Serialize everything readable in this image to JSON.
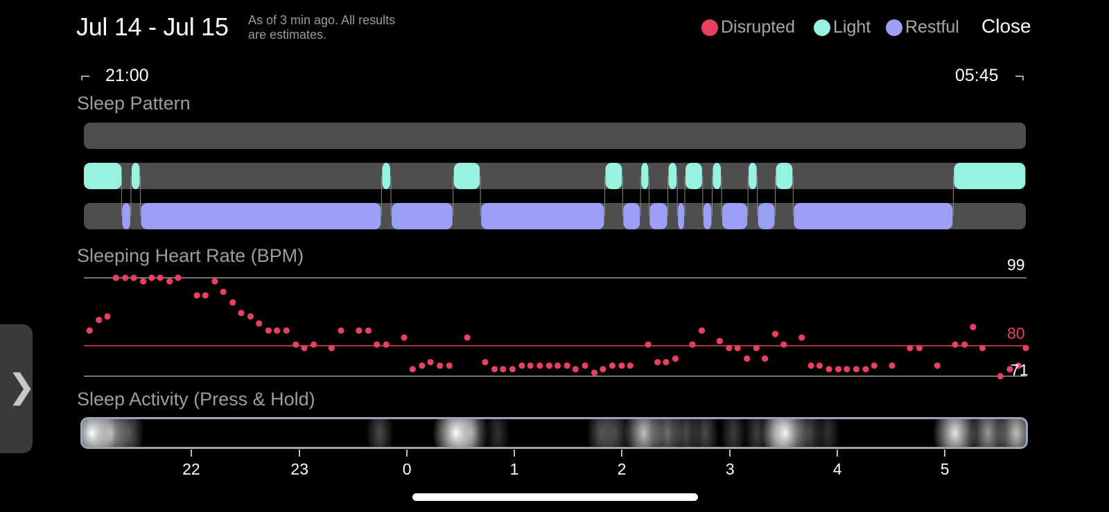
{
  "header": {
    "date_range": "Jul 14 - Jul 15",
    "as_of_line1": "As of 3 min ago. All results",
    "as_of_line2": "are estimates.",
    "legend": [
      {
        "label": "Disrupted",
        "color": "#e8405f"
      },
      {
        "label": "Light",
        "color": "#96f2e1"
      },
      {
        "label": "Restful",
        "color": "#9b9ff5"
      }
    ],
    "close_label": "Close"
  },
  "time_range": {
    "start": "21:00",
    "end": "05:45"
  },
  "sleep_pattern": {
    "title": "Sleep Pattern",
    "light_segments": [
      [
        0.0,
        0.04
      ],
      [
        0.05,
        0.06
      ],
      [
        0.316,
        0.326
      ],
      [
        0.392,
        0.421
      ],
      [
        0.553,
        0.572
      ],
      [
        0.591,
        0.6
      ],
      [
        0.62,
        0.63
      ],
      [
        0.638,
        0.657
      ],
      [
        0.667,
        0.677
      ],
      [
        0.705,
        0.715
      ],
      [
        0.734,
        0.753
      ],
      [
        0.923,
        1.0
      ]
    ],
    "restful_segments": [
      [
        0.04,
        0.05
      ],
      [
        0.06,
        0.316
      ],
      [
        0.326,
        0.392
      ],
      [
        0.421,
        0.553
      ],
      [
        0.572,
        0.591
      ],
      [
        0.6,
        0.62
      ],
      [
        0.63,
        0.638
      ],
      [
        0.657,
        0.667
      ],
      [
        0.677,
        0.705
      ],
      [
        0.715,
        0.734
      ],
      [
        0.753,
        0.923
      ]
    ]
  },
  "heart_rate": {
    "title": "Sleeping Heart Rate (BPM)",
    "max_label": "99",
    "avg_label": "80",
    "min_label": "71",
    "max": 99,
    "avg": 80,
    "min": 71,
    "points": [
      [
        0.006,
        84
      ],
      [
        0.016,
        87
      ],
      [
        0.025,
        88
      ],
      [
        0.034,
        99
      ],
      [
        0.044,
        99
      ],
      [
        0.053,
        99
      ],
      [
        0.063,
        98
      ],
      [
        0.072,
        99
      ],
      [
        0.081,
        99
      ],
      [
        0.091,
        98
      ],
      [
        0.1,
        99
      ],
      [
        0.12,
        94
      ],
      [
        0.129,
        94
      ],
      [
        0.139,
        98
      ],
      [
        0.148,
        95
      ],
      [
        0.158,
        92
      ],
      [
        0.167,
        89
      ],
      [
        0.177,
        88
      ],
      [
        0.186,
        86
      ],
      [
        0.196,
        84
      ],
      [
        0.205,
        84
      ],
      [
        0.215,
        84
      ],
      [
        0.225,
        80
      ],
      [
        0.234,
        79
      ],
      [
        0.244,
        80
      ],
      [
        0.263,
        79
      ],
      [
        0.273,
        84
      ],
      [
        0.292,
        84
      ],
      [
        0.302,
        84
      ],
      [
        0.311,
        80
      ],
      [
        0.321,
        80
      ],
      [
        0.34,
        82
      ],
      [
        0.349,
        73
      ],
      [
        0.359,
        74
      ],
      [
        0.368,
        75
      ],
      [
        0.378,
        74
      ],
      [
        0.388,
        74
      ],
      [
        0.407,
        82
      ],
      [
        0.426,
        75
      ],
      [
        0.436,
        73
      ],
      [
        0.445,
        73
      ],
      [
        0.455,
        73
      ],
      [
        0.465,
        74
      ],
      [
        0.474,
        74
      ],
      [
        0.484,
        74
      ],
      [
        0.494,
        74
      ],
      [
        0.503,
        74
      ],
      [
        0.513,
        74
      ],
      [
        0.522,
        73
      ],
      [
        0.532,
        74
      ],
      [
        0.542,
        72
      ],
      [
        0.551,
        73
      ],
      [
        0.561,
        74
      ],
      [
        0.571,
        74
      ],
      [
        0.58,
        74
      ],
      [
        0.599,
        80
      ],
      [
        0.609,
        75
      ],
      [
        0.618,
        75
      ],
      [
        0.628,
        76
      ],
      [
        0.646,
        80
      ],
      [
        0.656,
        84
      ],
      [
        0.675,
        81
      ],
      [
        0.685,
        79
      ],
      [
        0.694,
        79
      ],
      [
        0.704,
        76
      ],
      [
        0.714,
        79
      ],
      [
        0.723,
        76
      ],
      [
        0.734,
        83
      ],
      [
        0.743,
        80
      ],
      [
        0.762,
        82
      ],
      [
        0.772,
        74
      ],
      [
        0.781,
        74
      ],
      [
        0.791,
        73
      ],
      [
        0.801,
        73
      ],
      [
        0.81,
        73
      ],
      [
        0.82,
        73
      ],
      [
        0.83,
        73
      ],
      [
        0.839,
        74
      ],
      [
        0.858,
        74
      ],
      [
        0.877,
        79
      ],
      [
        0.887,
        79
      ],
      [
        0.906,
        74
      ],
      [
        0.925,
        80
      ],
      [
        0.935,
        80
      ],
      [
        0.944,
        85
      ],
      [
        0.954,
        79
      ],
      [
        0.973,
        71
      ],
      [
        0.983,
        73
      ],
      [
        0.992,
        74
      ],
      [
        1.0,
        79
      ]
    ]
  },
  "sleep_activity": {
    "title": "Sleep Activity (Press & Hold)",
    "bursts": [
      [
        0.01,
        1.0
      ],
      [
        0.03,
        0.7
      ],
      [
        0.05,
        0.35
      ],
      [
        0.315,
        0.3
      ],
      [
        0.396,
        1.0
      ],
      [
        0.412,
        0.55
      ],
      [
        0.44,
        0.2
      ],
      [
        0.55,
        0.35
      ],
      [
        0.565,
        0.3
      ],
      [
        0.595,
        0.75
      ],
      [
        0.62,
        0.45
      ],
      [
        0.64,
        0.3
      ],
      [
        0.66,
        0.3
      ],
      [
        0.69,
        0.25
      ],
      [
        0.715,
        0.25
      ],
      [
        0.735,
        0.35
      ],
      [
        0.745,
        0.95
      ],
      [
        0.77,
        0.3
      ],
      [
        0.79,
        0.2
      ],
      [
        0.925,
        0.9
      ],
      [
        0.96,
        0.6
      ],
      [
        0.99,
        0.75
      ]
    ]
  },
  "x_axis": {
    "ticks": [
      {
        "label": "22",
        "pos": 0.114
      },
      {
        "label": "23",
        "pos": 0.229
      },
      {
        "label": "0",
        "pos": 0.343
      },
      {
        "label": "1",
        "pos": 0.457
      },
      {
        "label": "2",
        "pos": 0.571
      },
      {
        "label": "3",
        "pos": 0.686
      },
      {
        "label": "4",
        "pos": 0.8
      },
      {
        "label": "5",
        "pos": 0.914
      }
    ]
  },
  "colors": {
    "disrupted": "#e8405f",
    "light": "#96f2e1",
    "restful": "#9b9ff5",
    "track": "#4e4e4e"
  }
}
